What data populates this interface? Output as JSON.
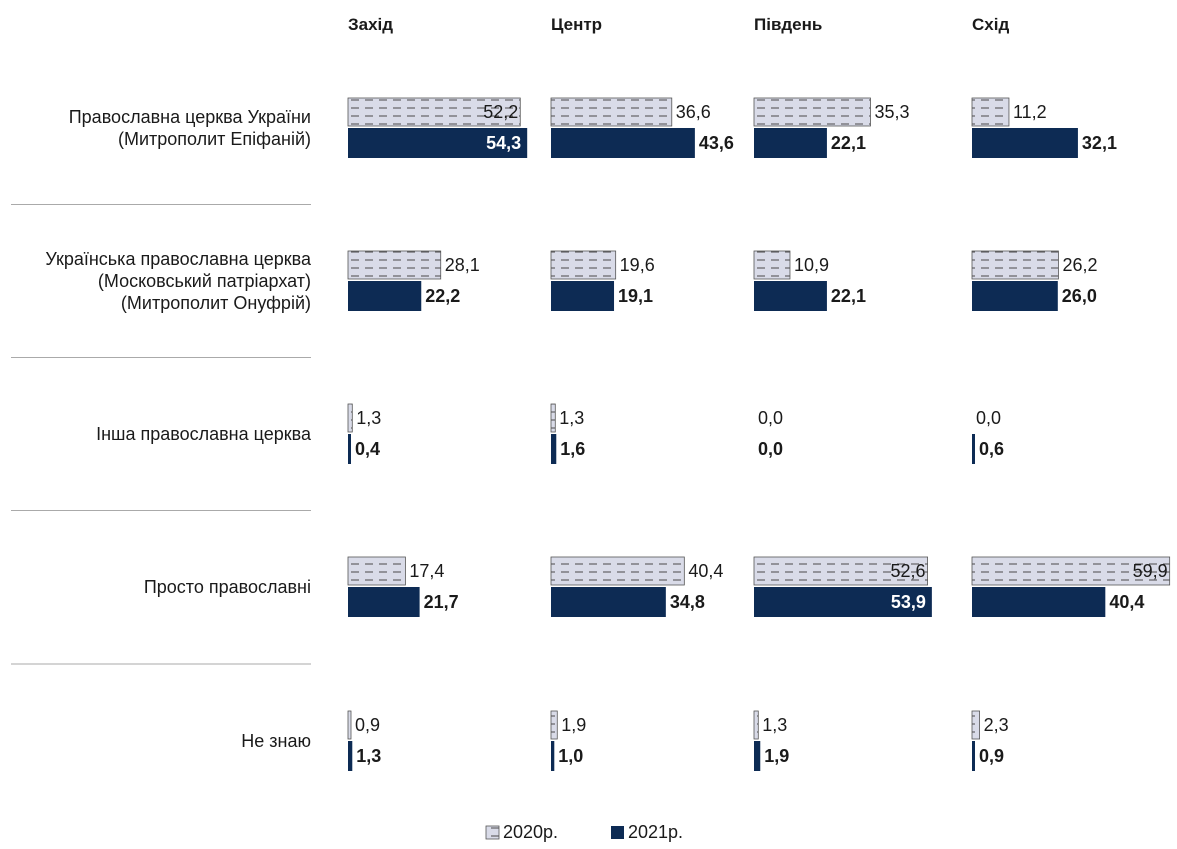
{
  "chart_data": {
    "type": "bar",
    "orientation": "horizontal",
    "panels": [
      "Захід",
      "Центр",
      "Південь",
      "Схід"
    ],
    "categories": [
      [
        "Православна церква України",
        "(Митрополит Епіфаній)"
      ],
      [
        "Українська православна церква",
        "(Московський патріархат)",
        "(Митрополит Онуфрій)"
      ],
      [
        "Інша православна церква"
      ],
      [
        "Просто православні"
      ],
      [
        "Не знаю"
      ]
    ],
    "series": [
      {
        "name": "2020р.",
        "pattern": "dashed",
        "values": [
          [
            52.2,
            36.6,
            35.3,
            11.2
          ],
          [
            28.1,
            19.6,
            10.9,
            26.2
          ],
          [
            1.3,
            1.3,
            0.0,
            0.0
          ],
          [
            17.4,
            40.4,
            52.6,
            59.9
          ],
          [
            0.9,
            1.9,
            1.3,
            2.3
          ]
        ],
        "labels": [
          [
            "52,2",
            "36,6",
            "35,3",
            "11,2"
          ],
          [
            "28,1",
            "19,6",
            "10,9",
            "26,2"
          ],
          [
            "1,3",
            "1,3",
            "0,0",
            "0,0"
          ],
          [
            "17,4",
            "40,4",
            "52,6",
            "59,9"
          ],
          [
            "0,9",
            "1,9",
            "1,3",
            "2,3"
          ]
        ]
      },
      {
        "name": "2021р.",
        "values": [
          [
            54.3,
            43.6,
            22.1,
            32.1
          ],
          [
            22.2,
            19.1,
            22.1,
            26.0
          ],
          [
            0.4,
            1.6,
            0.0,
            0.6
          ],
          [
            21.7,
            34.8,
            53.9,
            40.4
          ],
          [
            1.3,
            1.0,
            1.9,
            0.9
          ]
        ],
        "labels": [
          [
            "54,3",
            "43,6",
            "22,1",
            "32,1"
          ],
          [
            "22,2",
            "19,1",
            "22,1",
            "26,0"
          ],
          [
            "0,4",
            "1,6",
            "0,0",
            "0,6"
          ],
          [
            "21,7",
            "34,8",
            "53,9",
            "40,4"
          ],
          [
            "1,3",
            "1,0",
            "1,9",
            "0,9"
          ]
        ]
      }
    ],
    "legend_position": "bottom-center",
    "colors": {
      "series_2020_fill": "#d9dbe8",
      "series_2020_dash": "#4a4a4a",
      "series_2021_fill": "#0d2b54",
      "divider": "#aaaaaa"
    }
  }
}
